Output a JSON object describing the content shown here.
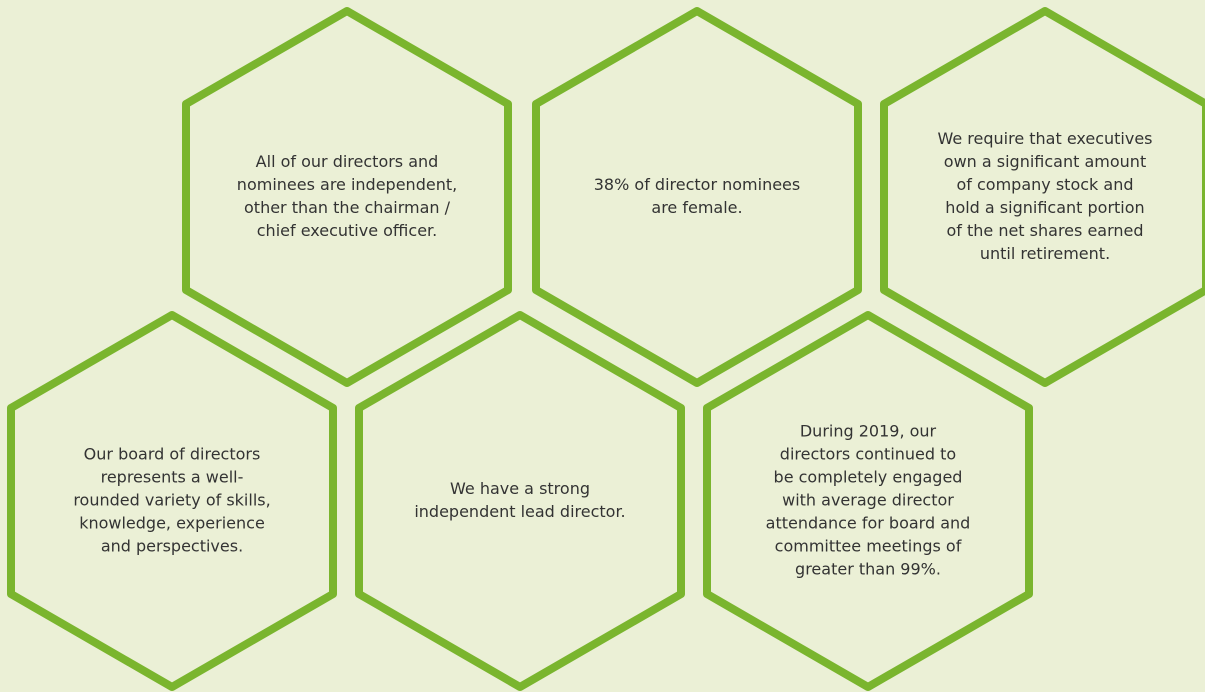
{
  "hexagons": [
    {
      "lines": [
        "All of our directors and",
        "nominees are independent,",
        "other than the chairman /",
        "chief executive officer."
      ]
    },
    {
      "lines": [
        "38% of director nominees",
        "are female."
      ]
    },
    {
      "lines": [
        "We require that executives",
        "own a significant amount",
        "of company stock and",
        "hold a significant portion",
        "of the net shares earned",
        "until retirement."
      ]
    },
    {
      "lines": [
        "Our board of directors",
        "represents a well-",
        "rounded variety of skills,",
        "knowledge, experience",
        "and perspectives."
      ]
    },
    {
      "lines": [
        "We have a strong",
        "independent lead director."
      ]
    },
    {
      "lines": [
        "During 2019, our",
        "directors continued to",
        "be completely engaged",
        "with average director",
        "attendance for board and",
        "committee meetings of",
        "greater than 99%."
      ]
    }
  ]
}
